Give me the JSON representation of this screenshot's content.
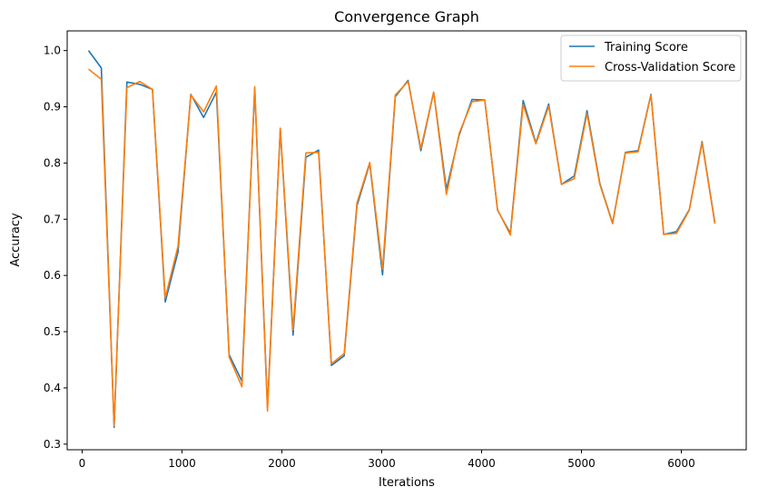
{
  "chart_data": {
    "type": "line",
    "title": "Convergence Graph",
    "xlabel": "Iterations",
    "ylabel": "Accuracy",
    "xlim": [
      -150,
      6650
    ],
    "ylim": [
      0.29,
      1.035
    ],
    "xticks": [
      0,
      1000,
      2000,
      3000,
      4000,
      5000,
      6000
    ],
    "yticks": [
      0.3,
      0.4,
      0.5,
      0.6,
      0.7,
      0.8,
      0.9,
      1.0
    ],
    "ytick_labels": [
      "0.3",
      "0.4",
      "0.5",
      "0.6",
      "0.7",
      "0.8",
      "0.9",
      "1.0"
    ],
    "grid": false,
    "legend_position": "top-right",
    "x": [
      64,
      192,
      320,
      448,
      576,
      704,
      832,
      960,
      1088,
      1216,
      1344,
      1472,
      1600,
      1728,
      1856,
      1984,
      2112,
      2240,
      2368,
      2496,
      2624,
      2752,
      2880,
      3008,
      3136,
      3264,
      3392,
      3520,
      3648,
      3776,
      3904,
      4032,
      4160,
      4288,
      4416,
      4544,
      4672,
      4800,
      4928,
      5056,
      5184,
      5312,
      5440,
      5568,
      5696,
      5824,
      5952,
      6080,
      6208,
      6336
    ],
    "series": [
      {
        "name": "Training Score",
        "color": "#1f77b4",
        "values": [
          1.0,
          0.969,
          0.33,
          0.944,
          0.94,
          0.931,
          0.553,
          0.642,
          0.922,
          0.881,
          0.926,
          0.459,
          0.412,
          0.933,
          0.365,
          0.86,
          0.494,
          0.81,
          0.823,
          0.44,
          0.457,
          0.724,
          0.799,
          0.601,
          0.918,
          0.947,
          0.822,
          0.926,
          0.753,
          0.85,
          0.913,
          0.912,
          0.716,
          0.675,
          0.911,
          0.836,
          0.905,
          0.762,
          0.777,
          0.893,
          0.764,
          0.693,
          0.819,
          0.822,
          0.922,
          0.673,
          0.678,
          0.717,
          0.838,
          0.694
        ]
      },
      {
        "name": "Cross-Validation Score",
        "color": "#ff7f0e",
        "values": [
          0.967,
          0.949,
          0.333,
          0.934,
          0.945,
          0.931,
          0.56,
          0.652,
          0.921,
          0.891,
          0.937,
          0.455,
          0.402,
          0.936,
          0.359,
          0.862,
          0.503,
          0.818,
          0.819,
          0.443,
          0.461,
          0.729,
          0.801,
          0.611,
          0.921,
          0.945,
          0.826,
          0.926,
          0.744,
          0.853,
          0.909,
          0.912,
          0.717,
          0.672,
          0.904,
          0.834,
          0.901,
          0.762,
          0.772,
          0.888,
          0.762,
          0.692,
          0.818,
          0.82,
          0.921,
          0.673,
          0.675,
          0.716,
          0.836,
          0.692
        ]
      }
    ]
  }
}
